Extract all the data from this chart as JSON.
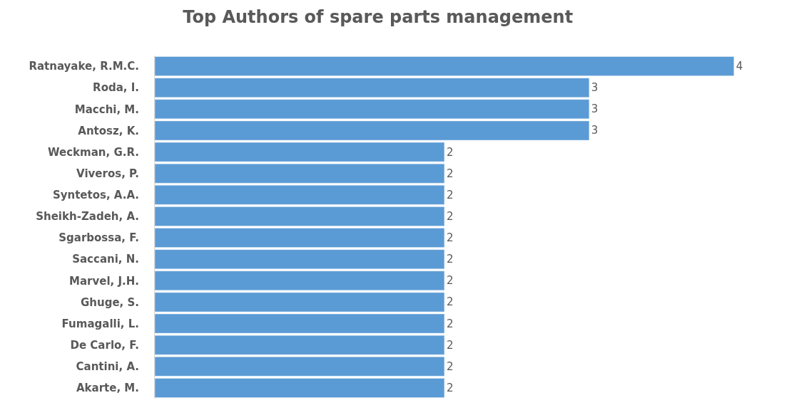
{
  "chart_data": {
    "type": "bar",
    "orientation": "horizontal",
    "title": "Top Authors of spare parts management",
    "categories": [
      "Ratnayake, R.M.C.",
      "Roda, I.",
      "Macchi, M.",
      "Antosz, K.",
      "Weckman, G.R.",
      "Viveros, P.",
      "Syntetos, A.A.",
      "Sheikh-Zadeh, A.",
      "Sgarbossa, F.",
      "Saccani, N.",
      "Marvel, J.H.",
      "Ghuge, S.",
      "Fumagalli, L.",
      "De Carlo, F.",
      "Cantini, A.",
      "Akarte, M."
    ],
    "values": [
      4,
      3,
      3,
      3,
      2,
      2,
      2,
      2,
      2,
      2,
      2,
      2,
      2,
      2,
      2,
      2
    ],
    "color": "#5b9bd5",
    "data_labels": true,
    "legend": false,
    "tick_labels": "y"
  }
}
